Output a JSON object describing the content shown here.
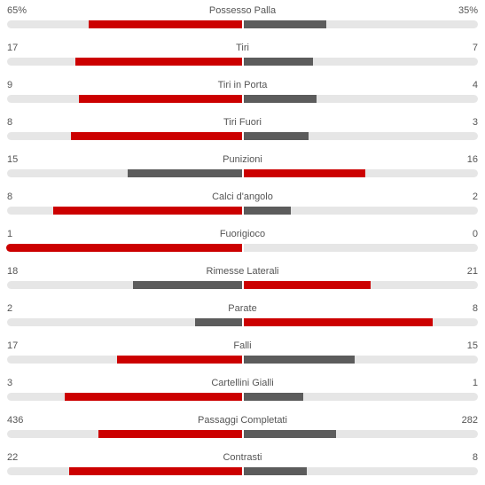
{
  "colors": {
    "primary": "#cc0000",
    "secondary": "#5c5c5c",
    "track": "#e6e6e6"
  },
  "stats": [
    {
      "label": "Possesso Palla",
      "left": "65%",
      "right": "35%",
      "left_value": 65,
      "right_value": 35,
      "leading": "left"
    },
    {
      "label": "Tiri",
      "left": "17",
      "right": "7",
      "left_value": 17,
      "right_value": 7,
      "leading": "left"
    },
    {
      "label": "Tiri in Porta",
      "left": "9",
      "right": "4",
      "left_value": 9,
      "right_value": 4,
      "leading": "left"
    },
    {
      "label": "Tiri Fuori",
      "left": "8",
      "right": "3",
      "left_value": 8,
      "right_value": 3,
      "leading": "left"
    },
    {
      "label": "Punizioni",
      "left": "15",
      "right": "16",
      "left_value": 15,
      "right_value": 16,
      "leading": "right"
    },
    {
      "label": "Calci d'angolo",
      "left": "8",
      "right": "2",
      "left_value": 8,
      "right_value": 2,
      "leading": "left"
    },
    {
      "label": "Fuorigioco",
      "left": "1",
      "right": "0",
      "left_value": 1,
      "right_value": 0,
      "leading": "left"
    },
    {
      "label": "Rimesse Laterali",
      "left": "18",
      "right": "21",
      "left_value": 18,
      "right_value": 21,
      "leading": "right"
    },
    {
      "label": "Parate",
      "left": "2",
      "right": "8",
      "left_value": 2,
      "right_value": 8,
      "leading": "right"
    },
    {
      "label": "Falli",
      "left": "17",
      "right": "15",
      "left_value": 17,
      "right_value": 15,
      "leading": "left"
    },
    {
      "label": "Cartellini Gialli",
      "left": "3",
      "right": "1",
      "left_value": 3,
      "right_value": 1,
      "leading": "left"
    },
    {
      "label": "Passaggi Completati",
      "left": "436",
      "right": "282",
      "left_value": 436,
      "right_value": 282,
      "leading": "left"
    },
    {
      "label": "Contrasti",
      "left": "22",
      "right": "8",
      "left_value": 22,
      "right_value": 8,
      "leading": "left"
    }
  ]
}
